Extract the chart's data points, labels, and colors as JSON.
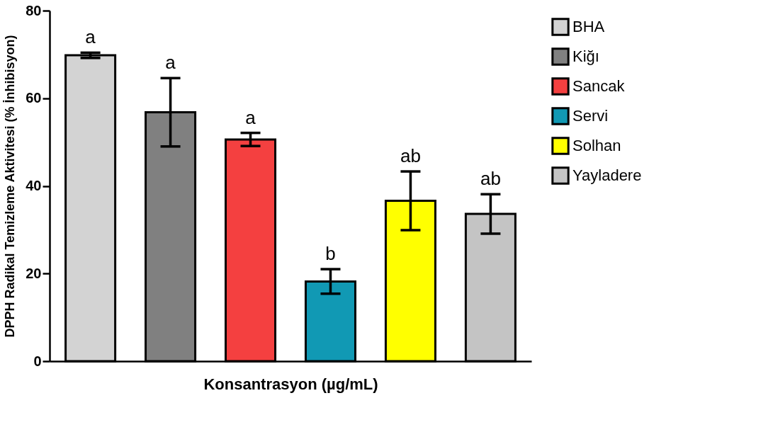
{
  "chart_data": {
    "type": "bar",
    "xlabel": "Konsantrasyon (µg/mL)",
    "ylabel": "DPPH Radikal Temizleme Aktivitesi (% İnhibisyon)",
    "categories": [
      null,
      null,
      null,
      null,
      null,
      null
    ],
    "series": [
      {
        "name": "BHA",
        "color": "#d3d3d3",
        "values": [
          69.8,
          null,
          null,
          null,
          null,
          null
        ],
        "errors": [
          0.6,
          null,
          null,
          null,
          null,
          null
        ]
      },
      {
        "name": "Kiğı",
        "color": "#808080",
        "values": [
          null,
          56.8,
          null,
          null,
          null,
          null
        ],
        "errors": [
          null,
          7.8,
          null,
          null,
          null,
          null
        ]
      },
      {
        "name": "Sancak",
        "color": "#f44040",
        "values": [
          null,
          null,
          50.6,
          null,
          null,
          null
        ],
        "errors": [
          null,
          null,
          1.5,
          null,
          null,
          null
        ]
      },
      {
        "name": "Servi",
        "color": "#1199b4",
        "values": [
          null,
          null,
          null,
          18.2,
          null,
          null
        ],
        "errors": [
          null,
          null,
          null,
          2.8,
          null,
          null
        ]
      },
      {
        "name": "Solhan",
        "color": "#ffff00",
        "values": [
          null,
          null,
          null,
          null,
          36.6,
          null
        ],
        "errors": [
          null,
          null,
          null,
          null,
          6.7,
          null
        ]
      },
      {
        "name": "Yayladere",
        "color": "#c4c4c4",
        "values": [
          null,
          null,
          null,
          null,
          null,
          33.6
        ],
        "errors": [
          null,
          null,
          null,
          null,
          null,
          4.5
        ]
      }
    ],
    "annotations": [
      "a",
      "a",
      "a",
      "b",
      "ab",
      "ab"
    ],
    "ylim": [
      0,
      80
    ],
    "yticks": [
      0,
      20,
      40,
      60,
      80
    ],
    "grid": false,
    "legend": "right",
    "tick_labels": "y"
  }
}
